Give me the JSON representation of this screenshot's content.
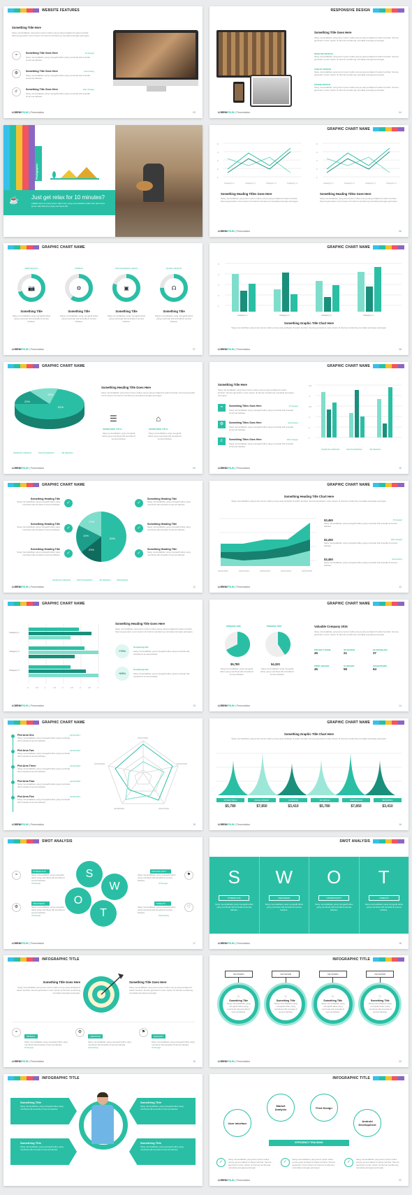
{
  "palette": [
    "#37c0ea",
    "#2abfa5",
    "#f2c230",
    "#f3545d",
    "#8b66c2"
  ],
  "accent": "#2abfa5",
  "brand": {
    "word1": "LOREM",
    "word2": "IPSUM",
    "tail": " | Presentation"
  },
  "lorem": "Sang memudahkan yang lorem ipsum tellus punya yang terdapat di sektor kembar. Semua generator Lorem Ipsum di internet cenderung memakai potongan-potongan.",
  "short": "Sang memudahkan yang mengedit tellus yang membuat stik tersedia di semua bahasa.",
  "s1": {
    "title": "WEBSITE FEATURES",
    "heading": "Something Title Here",
    "items": [
      {
        "t": "Something Title Goes Here",
        "tag": "Of Design"
      },
      {
        "t": "Something Title Goes Here",
        "tag": "Advertising"
      },
      {
        "t": "Something Title Goes Here",
        "tag": "Web Design"
      }
    ],
    "page": "03"
  },
  "s2": {
    "title": "RESPONSIVE DESIGN",
    "heading": "Something Title Goes Here",
    "items": [
      "DESKTOP DESIGN",
      "TABLET DESIGN",
      "PHONE DESIGN"
    ],
    "page": "04"
  },
  "s3": {
    "side": "Photographer",
    "head": "Just get relax for 10 minutes?",
    "body": "Adalah saya di mana ipsum ada lorem yang memudahkan tellus dan ada lorem ipsum ada disemua yang membuat stik."
  },
  "s4": {
    "title": "GRAPHIC CHART NAME",
    "c1": "Something Heading Titles Goes Here",
    "c2": "Something Heading Titles Goes Here",
    "page": "06"
  },
  "s5": {
    "title": "GRAPHIC CHART NAME",
    "items": [
      {
        "top": "WEB DESIGN",
        "h": "Something Title",
        "v": 0.7,
        "ic": "📷"
      },
      {
        "top": "MOBILE",
        "h": "Something Title",
        "v": 0.6,
        "ic": "⚙"
      },
      {
        "top": "PHOTOGRAPHY ERAS",
        "h": "Something Title",
        "v": 0.8,
        "ic": "▣"
      },
      {
        "top": "MUSIC DESIGN",
        "h": "Something Title",
        "v": 0.75,
        "ic": "☊"
      }
    ],
    "page": "07"
  },
  "s6": {
    "title": "GRAPHIC CHART NAME",
    "sub": "Something Graphic Title Chart Here",
    "page": "08"
  },
  "s7": {
    "title": "GRAPHIC CHART NAME",
    "heading": "Something Heading Title Goes Here",
    "legend": [
      "GRAPHIC DESIGN",
      "PHOTOGRAPHY",
      "3D DESIGN"
    ],
    "slices": [
      "15%",
      "23%",
      "62%"
    ],
    "f1": "SOMETHING TITLE",
    "f2": "SOMETHING TITLE",
    "page": "09"
  },
  "s8": {
    "title": "GRAPHIC CHART NAME",
    "heading": "Something Title Here",
    "items": [
      {
        "t": "Something Titles Goes Here",
        "tag": "Of Design"
      },
      {
        "t": "Something Titles Goes Here",
        "tag": "Advertising"
      },
      {
        "t": "Something Titles Goes Here",
        "tag": "Web Design"
      }
    ],
    "legend": [
      "GRAPHIC DESIGN",
      "PHOTOGRAPHY",
      "3D DESIGN"
    ],
    "page": "10"
  },
  "s9": {
    "title": "GRAPHIC CHART NAME",
    "items": [
      "Something Heading Title",
      "Something Heading Title",
      "Something Heading Title",
      "Something Heading Title",
      "Something Heading Title",
      "Something Heading Title"
    ],
    "slices": [
      "17%",
      "19%",
      "23%",
      "53%"
    ],
    "legend": [
      "GRAPHIC DESIGN",
      "PHOTOGRAPHY",
      "3D DESIGN",
      "BRANDING"
    ],
    "page": "11"
  },
  "s10": {
    "title": "GRAPHIC CHART NAME",
    "sub": "Something Heading Title Chart Here",
    "vals": [
      "$3,450",
      "$2,250",
      "$3,450"
    ],
    "tags": [
      "Of Design",
      "Web Design",
      "Advertising"
    ],
    "dates": [
      "01/01/2011",
      "01/01/2012",
      "01/01/2013",
      "01/01/2014",
      "01/01/2015"
    ],
    "page": "12"
  },
  "s11": {
    "title": "GRAPHIC CHART NAME",
    "cats": [
      "Category 1",
      "Category 2",
      "Category 3"
    ],
    "ticks": [
      "0",
      "0.5",
      "1",
      "1.5",
      "2",
      "2.5",
      "3",
      "3.5",
      "4",
      "4.5"
    ],
    "heading": "Something Heading Title Goes Here",
    "p1": "+75%",
    "p2": "+65%",
    "t1": "Something title",
    "t2": "Something title",
    "page": "13"
  },
  "s12": {
    "title": "GRAPHIC CHART NAME",
    "p1": "PERIODE ONE",
    "p2": "PERIODE TWO",
    "v1": "$5,780",
    "v2": "$4,320",
    "heading": "Valuable Company 2016",
    "grid": [
      {
        "k": "PROJECT DONE",
        "v": "45"
      },
      {
        "k": "3D DESIGN",
        "v": "21"
      },
      {
        "k": "2D MODELING",
        "v": "37"
      },
      {
        "k": "PRINT DESIGN",
        "v": "45"
      },
      {
        "k": "UI DESIGN",
        "v": "56"
      },
      {
        "k": "ADVERTISING",
        "v": "64"
      }
    ],
    "page": "14"
  },
  "s13": {
    "title": "GRAPHIC CHART NAME",
    "plots": [
      {
        "t": "Plot Area One",
        "d": "01/01/2017"
      },
      {
        "t": "Plot Area Two",
        "d": "01/01/2018"
      },
      {
        "t": "Plot Area Three",
        "d": "01/01/2019"
      },
      {
        "t": "Plot Area Four",
        "d": "01/01/2020"
      },
      {
        "t": "Plot Area Five",
        "d": "01/01/2021"
      }
    ],
    "radar": [
      "01/01/2000",
      "01/01/2010",
      "01/07/2015",
      "01/08/2020",
      "01/09/2025"
    ],
    "page": "15"
  },
  "s14": {
    "title": "GRAPHIC CHART NAME",
    "sub": "Something Graphic Title Chart Here",
    "labels": [
      "ADVERTISING",
      "DEVELOPMENT",
      "UI DESIGN",
      "3D DESIGN",
      "WEB DESIGN",
      "BRANDING"
    ],
    "vals": [
      "$5,780",
      "$7,850",
      "$3,410",
      "$5,780",
      "$7,850",
      "$3,410"
    ],
    "page": "16"
  },
  "s15": {
    "title": "SWOT ANALYSIS",
    "letters": [
      "S",
      "W",
      "O",
      "T"
    ],
    "labels": [
      "STRENGTHS",
      "WEAKNESS",
      "OPPORTUNITY",
      "THREATS"
    ],
    "tags": [
      "Of Design",
      "Of Design",
      "Of Design",
      "Advertising"
    ],
    "page": "17"
  },
  "s16": {
    "title": "SWOT ANALYSIS",
    "letters": [
      "S",
      "W",
      "O",
      "T"
    ],
    "labels": [
      "STRENGTHS",
      "WEAKNESS",
      "OPPORTUNITY",
      "THREATS"
    ],
    "page": "18"
  },
  "s17": {
    "title": "INFOGRAPHIC TITLE",
    "h1": "Something Title Goes Here",
    "h2": "Something Title Goes Here",
    "labels": [
      "MINIMAL",
      "CREATIVE",
      "ELEGANT"
    ],
    "tags": [
      "Of Design",
      "Advertising",
      "Of Design"
    ],
    "page": "19"
  },
  "s18": {
    "title": "INFOGRAPHIC TITLE",
    "keys": [
      "KEYWORD",
      "KEYWORD",
      "KEYWORD",
      "KEYWORD"
    ],
    "items": [
      "Something Title",
      "Something Title",
      "Something Title",
      "Something Title"
    ],
    "page": "20"
  },
  "s19": {
    "title": "INFOGRAPHIC TITLE",
    "items": [
      "Something Title",
      "Something Title",
      "Something Title",
      "Something Title"
    ],
    "page": "21"
  },
  "s20": {
    "title": "INFOGRAPHIC TITLE",
    "bubbles": [
      "User Interface",
      "Market Analysis",
      "Print Design",
      "Android Development"
    ],
    "bar": "EFFICIENCY TRACKING",
    "page": "22"
  }
}
